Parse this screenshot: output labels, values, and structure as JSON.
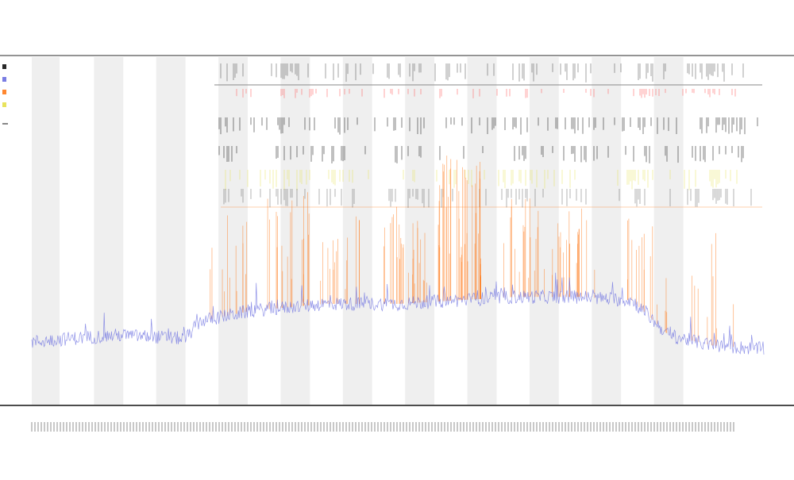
{
  "chart_data": {
    "type": "line",
    "title": "",
    "subtitle_lines": [
      "",
      ""
    ],
    "xlabel": "",
    "ylabel": "",
    "grid": false,
    "legend_position": "left",
    "colors": {
      "series_main": "#6b6fe0",
      "spikes": "#ff7a1a",
      "band_shade": "#efefef",
      "track_black": "#111111",
      "track_red": "#ff4d4d",
      "track_yellow": "#e6e04a",
      "axis": "#111111"
    },
    "x_categories_count": 900,
    "bands": [
      {
        "start": 0.0,
        "end": 0.038
      },
      {
        "start": 0.085,
        "end": 0.125
      },
      {
        "start": 0.17,
        "end": 0.21
      },
      {
        "start": 0.255,
        "end": 0.295
      },
      {
        "start": 0.34,
        "end": 0.38
      },
      {
        "start": 0.425,
        "end": 0.465
      },
      {
        "start": 0.51,
        "end": 0.55
      },
      {
        "start": 0.595,
        "end": 0.635
      },
      {
        "start": 0.68,
        "end": 0.72
      },
      {
        "start": 0.765,
        "end": 0.805
      },
      {
        "start": 0.85,
        "end": 0.89
      }
    ],
    "series": [
      {
        "values_profile": [
          {
            "x": 0.0,
            "y": 0.18
          },
          {
            "x": 0.05,
            "y": 0.19
          },
          {
            "x": 0.12,
            "y": 0.2
          },
          {
            "x": 0.21,
            "y": 0.19
          },
          {
            "x": 0.23,
            "y": 0.24
          },
          {
            "x": 0.3,
            "y": 0.27
          },
          {
            "x": 0.4,
            "y": 0.29
          },
          {
            "x": 0.5,
            "y": 0.29
          },
          {
            "x": 0.58,
            "y": 0.3
          },
          {
            "x": 0.66,
            "y": 0.31
          },
          {
            "x": 0.75,
            "y": 0.31
          },
          {
            "x": 0.82,
            "y": 0.3
          },
          {
            "x": 0.87,
            "y": 0.2
          },
          {
            "x": 0.93,
            "y": 0.17
          },
          {
            "x": 1.0,
            "y": 0.16
          }
        ]
      }
    ],
    "spike_clusters": [
      {
        "center": 0.27,
        "count": 4,
        "max_height": 0.55
      },
      {
        "center": 0.35,
        "count": 6,
        "max_height": 0.62
      },
      {
        "center": 0.42,
        "count": 5,
        "max_height": 0.55
      },
      {
        "center": 0.51,
        "count": 9,
        "max_height": 0.58
      },
      {
        "center": 0.585,
        "count": 14,
        "max_height": 0.72
      },
      {
        "center": 0.67,
        "count": 6,
        "max_height": 0.6
      },
      {
        "center": 0.74,
        "count": 7,
        "max_height": 0.58
      },
      {
        "center": 0.84,
        "count": 5,
        "max_height": 0.6
      },
      {
        "center": 0.93,
        "count": 3,
        "max_height": 0.5
      }
    ]
  }
}
